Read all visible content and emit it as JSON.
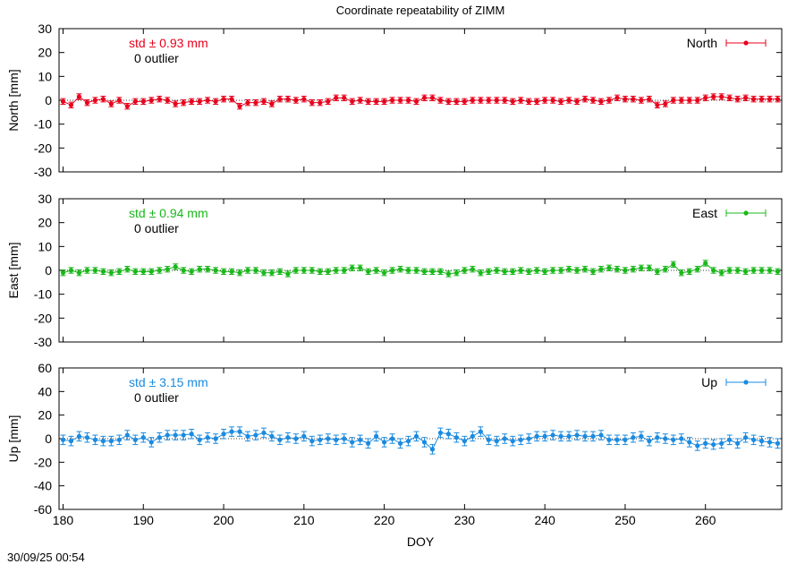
{
  "title": "Coordinate repeatability of ZIMM",
  "timestamp": "30/09/25 00:54",
  "chart_data": [
    {
      "type": "scatter",
      "series_name": "North",
      "ylabel": "North [mm]",
      "xlabel": "",
      "xlim": [
        179.5,
        269.5
      ],
      "ylim": [
        -30,
        30
      ],
      "yticks": [
        30,
        20,
        10,
        0,
        -10,
        -20,
        -30
      ],
      "std_text": "std ± 0.93 mm",
      "outlier_text": "0 outlier",
      "color": "#e8001c",
      "error_bar": 1.2,
      "x": [
        180,
        181,
        182,
        183,
        184,
        185,
        186,
        187,
        188,
        189,
        190,
        191,
        192,
        193,
        194,
        195,
        196,
        197,
        198,
        199,
        200,
        201,
        202,
        203,
        204,
        205,
        206,
        207,
        208,
        209,
        210,
        211,
        212,
        213,
        214,
        215,
        216,
        217,
        218,
        219,
        220,
        221,
        222,
        223,
        224,
        225,
        226,
        227,
        228,
        229,
        230,
        231,
        232,
        233,
        234,
        235,
        236,
        237,
        238,
        239,
        240,
        241,
        242,
        243,
        244,
        245,
        246,
        247,
        248,
        249,
        250,
        251,
        252,
        253,
        254,
        255,
        256,
        257,
        258,
        259,
        260,
        261,
        262,
        263,
        264,
        265,
        266,
        267,
        268,
        269
      ],
      "y": [
        -0.5,
        -2,
        1.5,
        -1,
        0,
        0.5,
        -1.5,
        0,
        -2.5,
        -0.5,
        -0.5,
        0,
        0.5,
        0,
        -1.5,
        -1,
        -0.5,
        -0.5,
        0,
        -0.5,
        0.5,
        0.5,
        -2.5,
        -1,
        -1,
        -0.5,
        -1.5,
        0.5,
        0.5,
        0,
        0.5,
        -1,
        -1,
        -0.5,
        1,
        1,
        -0.5,
        0,
        -0.5,
        -0.5,
        -0.5,
        0,
        0,
        0,
        -0.5,
        1,
        1,
        0,
        -0.5,
        -0.5,
        -0.5,
        0,
        0,
        0,
        0,
        0,
        -0.5,
        0,
        -0.5,
        -0.5,
        0,
        0,
        -0.5,
        0,
        -0.5,
        0.5,
        0,
        -0.5,
        0,
        1,
        0.5,
        0.5,
        0,
        0.5,
        -2,
        -1.5,
        0,
        0,
        0,
        0,
        1,
        1.5,
        1.5,
        1,
        0.5,
        1,
        0.5,
        0.5,
        0.5,
        0.5
      ]
    },
    {
      "type": "scatter",
      "series_name": "East",
      "ylabel": "East [mm]",
      "xlabel": "",
      "xlim": [
        179.5,
        269.5
      ],
      "ylim": [
        -30,
        30
      ],
      "yticks": [
        30,
        20,
        10,
        0,
        -10,
        -20,
        -30
      ],
      "std_text": "std ± 0.94 mm",
      "outlier_text": "0 outlier",
      "color": "#1ab81a",
      "error_bar": 1.2,
      "x": [
        180,
        181,
        182,
        183,
        184,
        185,
        186,
        187,
        188,
        189,
        190,
        191,
        192,
        193,
        194,
        195,
        196,
        197,
        198,
        199,
        200,
        201,
        202,
        203,
        204,
        205,
        206,
        207,
        208,
        209,
        210,
        211,
        212,
        213,
        214,
        215,
        216,
        217,
        218,
        219,
        220,
        221,
        222,
        223,
        224,
        225,
        226,
        227,
        228,
        229,
        230,
        231,
        232,
        233,
        234,
        235,
        236,
        237,
        238,
        239,
        240,
        241,
        242,
        243,
        244,
        245,
        246,
        247,
        248,
        249,
        250,
        251,
        252,
        253,
        254,
        255,
        256,
        257,
        258,
        259,
        260,
        261,
        262,
        263,
        264,
        265,
        266,
        267,
        268,
        269
      ],
      "y": [
        -1,
        0,
        -1,
        0,
        0,
        -0.5,
        -1,
        -0.5,
        0.5,
        -0.5,
        -0.5,
        -0.5,
        0,
        0.5,
        1.5,
        0,
        -0.5,
        0.5,
        0.5,
        0,
        -0.5,
        -0.5,
        -1,
        0,
        0,
        -1,
        -1,
        -0.5,
        -1.5,
        0,
        0,
        0,
        -0.5,
        -0.5,
        0,
        0,
        1,
        1,
        -0.5,
        0,
        -1,
        0,
        0.5,
        0,
        0,
        -0.5,
        -0.5,
        -0.5,
        -1.5,
        -1,
        0,
        0.5,
        -1,
        -0.5,
        0,
        -0.5,
        -0.5,
        0,
        -0.5,
        0,
        -0.5,
        0,
        0,
        0.5,
        0,
        0.5,
        -0.5,
        0.5,
        1,
        0.5,
        0,
        0.5,
        1,
        1,
        -0.5,
        0.5,
        2.5,
        -1,
        -0.5,
        0.5,
        3,
        0,
        -1,
        0,
        0,
        -0.5,
        0,
        0,
        0,
        -0.5
      ]
    },
    {
      "type": "scatter",
      "series_name": "Up",
      "ylabel": "Up [mm]",
      "xlabel": "DOY",
      "xlim": [
        179.5,
        269.5
      ],
      "ylim": [
        -60,
        60
      ],
      "yticks": [
        60,
        40,
        20,
        0,
        -20,
        -40,
        -60
      ],
      "xticks": [
        180,
        190,
        200,
        210,
        220,
        230,
        240,
        250,
        260
      ],
      "std_text": "std ± 3.15 mm",
      "outlier_text": "0 outlier",
      "color": "#1a8be0",
      "error_bar": 4,
      "x": [
        180,
        181,
        182,
        183,
        184,
        185,
        186,
        187,
        188,
        189,
        190,
        191,
        192,
        193,
        194,
        195,
        196,
        197,
        198,
        199,
        200,
        201,
        202,
        203,
        204,
        205,
        206,
        207,
        208,
        209,
        210,
        211,
        212,
        213,
        214,
        215,
        216,
        217,
        218,
        219,
        220,
        221,
        222,
        223,
        224,
        225,
        226,
        227,
        228,
        229,
        230,
        231,
        232,
        233,
        234,
        235,
        236,
        237,
        238,
        239,
        240,
        241,
        242,
        243,
        244,
        245,
        246,
        247,
        248,
        249,
        250,
        251,
        252,
        253,
        254,
        255,
        256,
        257,
        258,
        259,
        260,
        261,
        262,
        263,
        264,
        265,
        266,
        267,
        268,
        269
      ],
      "y": [
        -1,
        -2,
        2,
        1,
        -1,
        -2,
        -2,
        -1,
        3,
        -1,
        1,
        -3,
        1,
        3,
        3,
        3,
        4,
        -1,
        1,
        0,
        4,
        6,
        6,
        2,
        3,
        5,
        2,
        -1,
        1,
        0,
        2,
        -2,
        -1,
        0,
        -1,
        0,
        -3,
        -1,
        -4,
        2,
        -3,
        0,
        -4,
        -2,
        2,
        -3,
        -9,
        5,
        4,
        1,
        -2,
        2,
        6,
        -1,
        -2,
        0,
        -2,
        -1,
        0,
        2,
        2,
        3,
        2,
        2,
        3,
        2,
        2,
        3,
        -1,
        -1,
        -1,
        1,
        2,
        -2,
        1,
        0,
        -1,
        0,
        -3,
        -6,
        -4,
        -5,
        -4,
        -1,
        -4,
        1,
        -1,
        -2,
        -3,
        -4
      ]
    }
  ]
}
